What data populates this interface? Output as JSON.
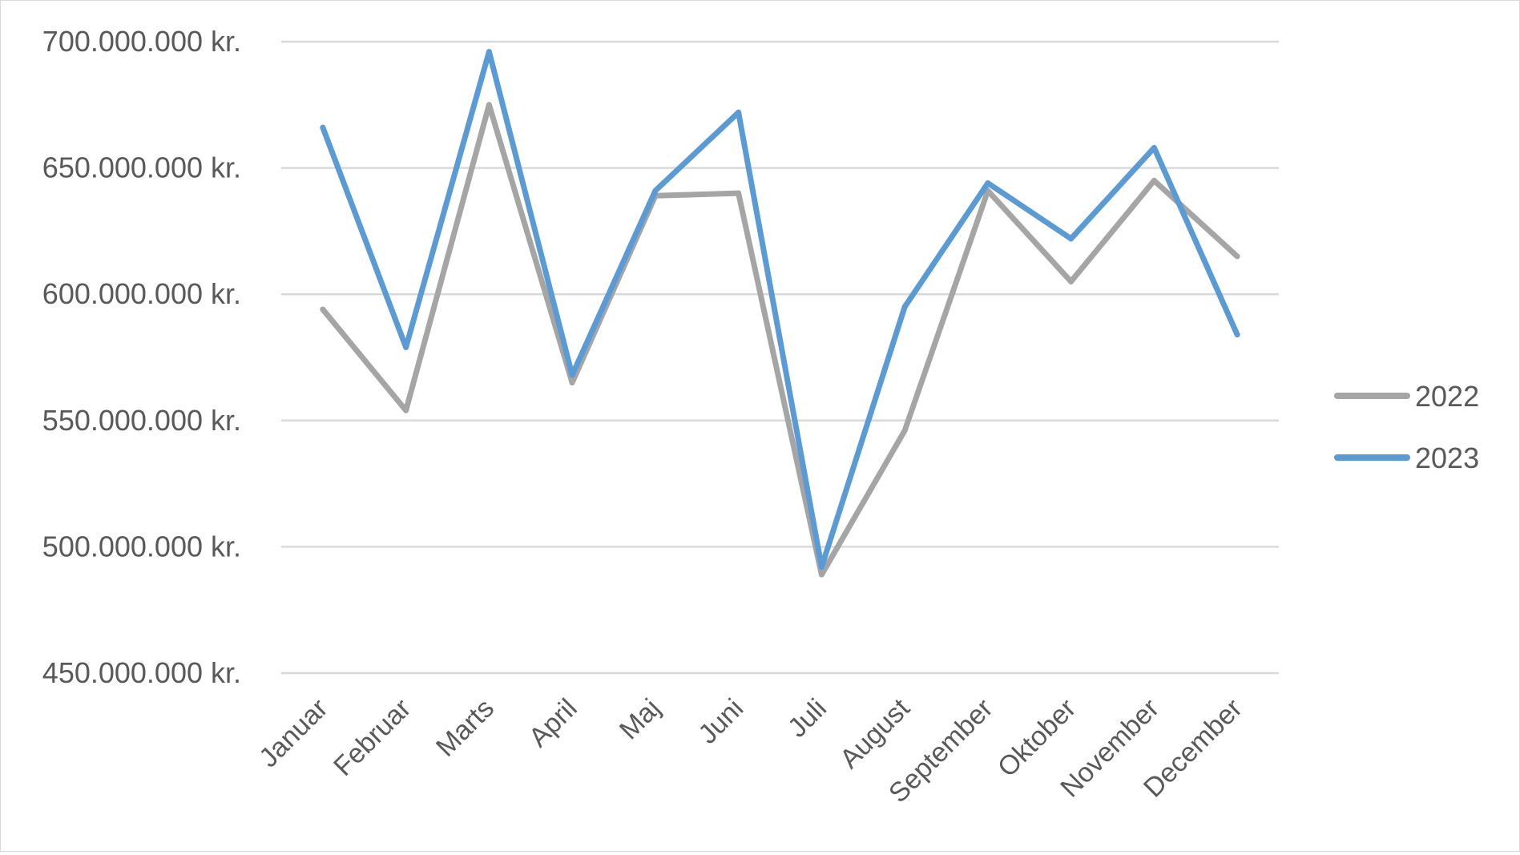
{
  "chart_data": {
    "type": "line",
    "title": "",
    "xlabel": "",
    "ylabel": "",
    "categories": [
      "Januar",
      "Februar",
      "Marts",
      "April",
      "Maj",
      "Juni",
      "Juli",
      "August",
      "September",
      "Oktober",
      "November",
      "December"
    ],
    "series": [
      {
        "name": "2022",
        "color": "#a5a5a5",
        "values": [
          594000000,
          554000000,
          675000000,
          565000000,
          639000000,
          640000000,
          489000000,
          546000000,
          641000000,
          605000000,
          645000000,
          615000000
        ]
      },
      {
        "name": "2023",
        "color": "#5b9bd5",
        "values": [
          666000000,
          579000000,
          696000000,
          568000000,
          641000000,
          672000000,
          492000000,
          595000000,
          644000000,
          622000000,
          658000000,
          584000000
        ]
      }
    ],
    "ylim": [
      450000000,
      700000000
    ],
    "yticks": [
      450000000,
      500000000,
      550000000,
      600000000,
      650000000,
      700000000
    ],
    "ytick_labels": [
      "450.000.000 kr.",
      "500.000.000 kr.",
      "550.000.000 kr.",
      "600.000.000 kr.",
      "650.000.000 kr.",
      "700.000.000 kr."
    ],
    "grid": true,
    "legend": {
      "position": "right",
      "entries": [
        "2022",
        "2023"
      ]
    }
  }
}
